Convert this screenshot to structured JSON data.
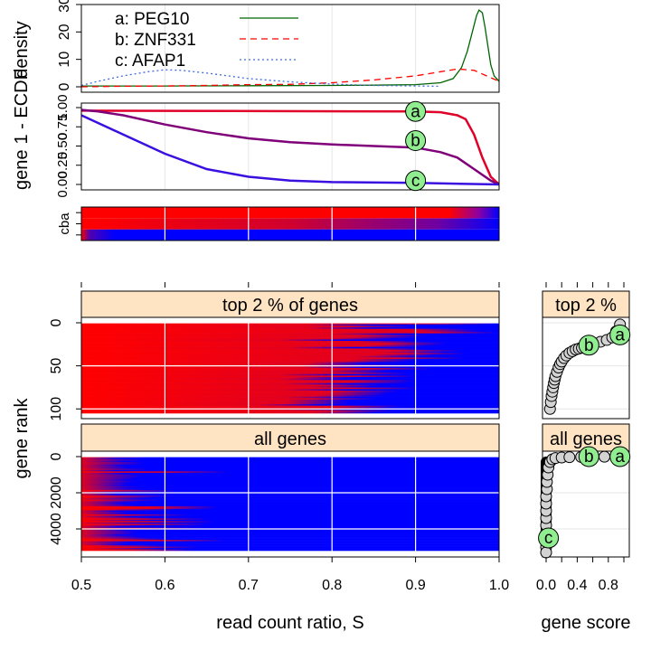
{
  "chart_data": [
    {
      "id": "density",
      "type": "line",
      "ylabel": "density",
      "xlim": [
        0.5,
        1.0
      ],
      "ylim": [
        0,
        30
      ],
      "yticks": [
        "0",
        "10",
        "20",
        "30"
      ],
      "legend_position": "top-left",
      "series": [
        {
          "name": "a: PEG10",
          "color": "#006400",
          "dash": "solid",
          "x": [
            0.5,
            0.6,
            0.7,
            0.8,
            0.85,
            0.9,
            0.93,
            0.945,
            0.955,
            0.962,
            0.968,
            0.973,
            0.976,
            0.98,
            0.983,
            0.987,
            0.99,
            0.994,
            1.0
          ],
          "y": [
            0.3,
            0.3,
            0.4,
            0.5,
            0.6,
            0.8,
            1.5,
            3,
            7,
            13,
            20,
            26,
            28,
            27,
            22,
            14,
            8,
            4,
            2
          ]
        },
        {
          "name": "b: ZNF331",
          "color": "#ff0000",
          "dash": "dashed",
          "x": [
            0.5,
            0.55,
            0.6,
            0.65,
            0.7,
            0.75,
            0.8,
            0.85,
            0.9,
            0.93,
            0.95,
            0.97,
            0.985,
            1.0
          ],
          "y": [
            0.0,
            0.2,
            0.3,
            0.5,
            0.8,
            0.9,
            1.5,
            2.5,
            4,
            5.5,
            6.5,
            6,
            4,
            2
          ]
        },
        {
          "name": "c: AFAP1",
          "color": "#4169e1",
          "dash": "dotted",
          "x": [
            0.5,
            0.52,
            0.55,
            0.58,
            0.6,
            0.62,
            0.65,
            0.7,
            0.75,
            0.8,
            0.85,
            0.9,
            0.93
          ],
          "y": [
            0.5,
            2,
            4,
            5.5,
            6.2,
            6,
            5,
            3,
            1.8,
            1,
            0.5,
            0.3,
            0.2
          ]
        }
      ]
    },
    {
      "id": "ecdf",
      "type": "line",
      "ylabel": "1 - ECDF",
      "xlim": [
        0.5,
        1.0
      ],
      "ylim": [
        0,
        1
      ],
      "yticks": [
        "0.00",
        "0.25",
        "0.50",
        "0.75",
        "1.00"
      ],
      "series": [
        {
          "name": "a",
          "x": [
            0.5,
            0.9,
            0.93,
            0.95,
            0.96,
            0.97,
            0.98,
            0.99,
            1.0
          ],
          "y": [
            0.96,
            0.95,
            0.94,
            0.9,
            0.85,
            0.65,
            0.35,
            0.1,
            0.0
          ]
        },
        {
          "name": "b",
          "x": [
            0.5,
            0.52,
            0.55,
            0.6,
            0.65,
            0.7,
            0.75,
            0.8,
            0.85,
            0.9,
            0.93,
            0.95,
            0.97,
            0.99,
            1.0
          ],
          "y": [
            0.97,
            0.95,
            0.9,
            0.78,
            0.68,
            0.6,
            0.55,
            0.52,
            0.5,
            0.48,
            0.42,
            0.35,
            0.2,
            0.05,
            0.0
          ]
        },
        {
          "name": "c",
          "x": [
            0.5,
            0.55,
            0.6,
            0.65,
            0.7,
            0.75,
            0.8,
            0.9,
            1.0
          ],
          "y": [
            0.9,
            0.65,
            0.4,
            0.2,
            0.1,
            0.05,
            0.03,
            0.02,
            0.0
          ]
        }
      ],
      "labels": [
        {
          "text": "a",
          "x": 0.9,
          "y": 0.95
        },
        {
          "text": "b",
          "x": 0.9,
          "y": 0.57
        },
        {
          "text": "c",
          "x": 0.9,
          "y": 0.05
        }
      ]
    },
    {
      "id": "gene-heat",
      "type": "heatmap",
      "ylabel": "gene",
      "rows": [
        "c",
        "b",
        "a"
      ],
      "xlim": [
        0.5,
        1.0
      ]
    },
    {
      "id": "rank-top",
      "type": "heatmap",
      "strip": "top 2 % of genes",
      "ylim": [
        0,
        105
      ],
      "yticks": [
        0,
        50,
        100
      ]
    },
    {
      "id": "rank-all",
      "type": "heatmap",
      "strip": "all genes",
      "ylim": [
        0,
        5200
      ],
      "yticks": [
        0,
        2000,
        4000
      ],
      "ytick_labels": [
        "0",
        "2000",
        "4000"
      ]
    },
    {
      "id": "score-top",
      "type": "scatter",
      "strip": "top 2 %",
      "x": [
        0.05,
        0.06,
        0.07,
        0.08,
        0.09,
        0.1,
        0.11,
        0.12,
        0.14,
        0.16,
        0.18,
        0.2,
        0.23,
        0.26,
        0.3,
        0.34,
        0.38,
        0.42,
        0.46,
        0.5,
        0.55,
        0.62,
        0.7,
        0.78,
        0.85,
        0.9,
        0.95
      ],
      "y": [
        100,
        92,
        85,
        80,
        75,
        70,
        66,
        62,
        57,
        52,
        48,
        45,
        41,
        38,
        35,
        33,
        31,
        30,
        29,
        28,
        27,
        24,
        22,
        20,
        17,
        10,
        2
      ],
      "labels": [
        {
          "text": "b",
          "x": 0.55,
          "y": 26
        },
        {
          "text": "a",
          "x": 0.95,
          "y": 14
        }
      ]
    },
    {
      "id": "score-all",
      "type": "scatter",
      "strip": "all genes",
      "x": [
        0.0,
        0.0,
        0.0,
        0.0,
        0.0,
        0.0,
        0.0,
        0.0,
        0.01,
        0.01,
        0.02,
        0.03,
        0.05,
        0.08,
        0.12,
        0.2,
        0.3,
        0.45,
        0.6,
        0.75,
        0.9,
        0.0
      ],
      "y": [
        5000,
        4600,
        4200,
        3800,
        3400,
        3000,
        2600,
        2200,
        1800,
        1400,
        1000,
        600,
        300,
        150,
        80,
        50,
        30,
        20,
        10,
        5,
        0,
        5300
      ],
      "labels": [
        {
          "text": "b",
          "x": 0.55,
          "y": 0
        },
        {
          "text": "a",
          "x": 0.95,
          "y": 0
        },
        {
          "text": "c",
          "x": 0.03,
          "y": 4500
        }
      ]
    }
  ],
  "axes": {
    "main_xlabel": "read count ratio, S",
    "main_xticks": [
      "0.5",
      "0.6",
      "0.7",
      "0.8",
      "0.9",
      "1.0"
    ],
    "side_xlabel": "gene score",
    "side_xticks": [
      "0.0",
      "0.4",
      "0.8"
    ],
    "rank_ylabel": "gene rank"
  },
  "colors": {
    "red": "#ff0000",
    "blue": "#0000ff",
    "label_fill": "#90ee90",
    "strip": "#ffe4c4"
  }
}
